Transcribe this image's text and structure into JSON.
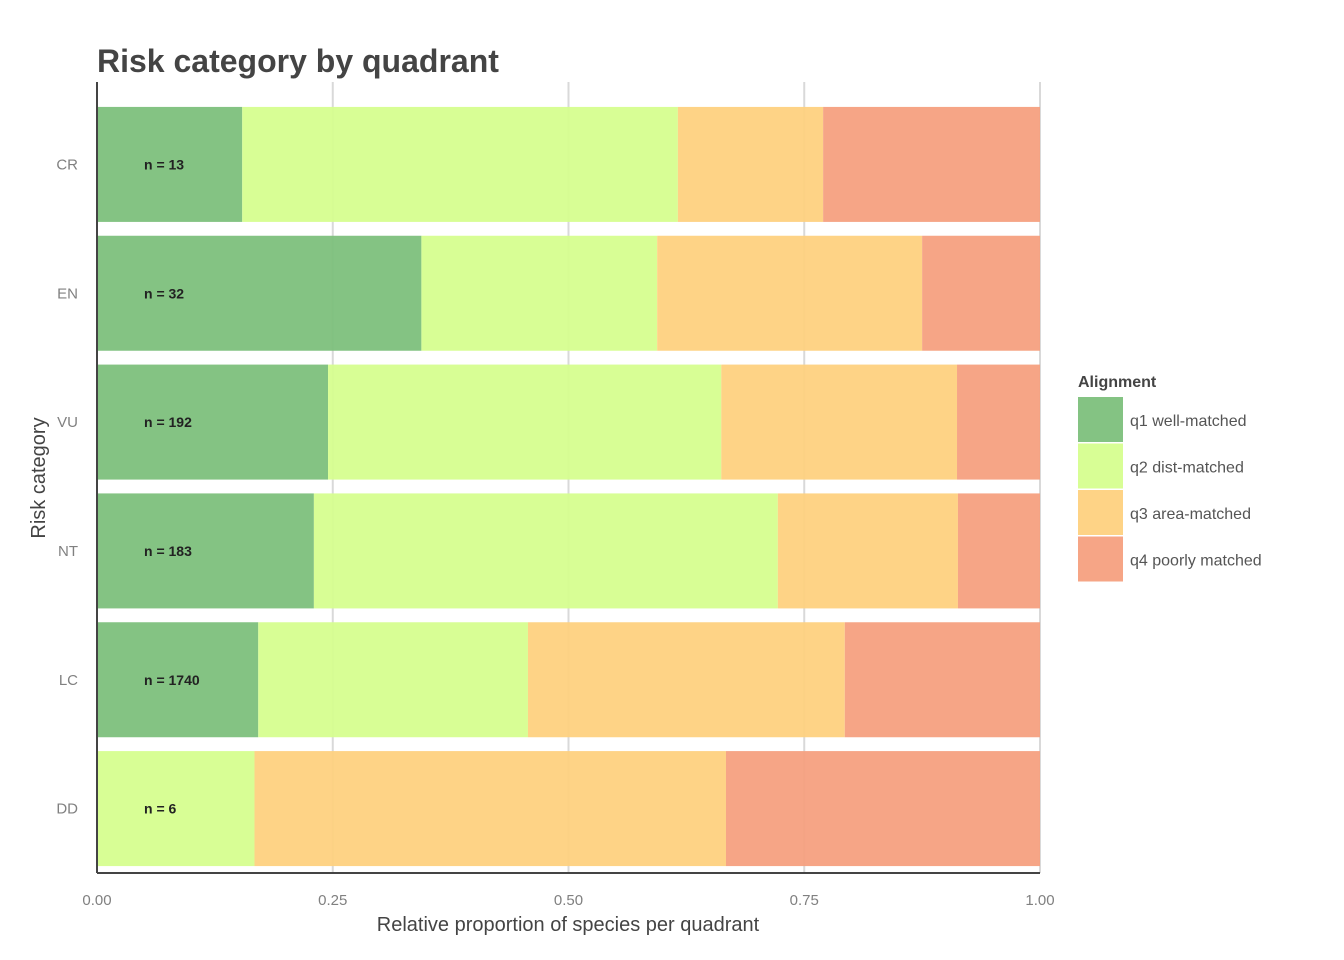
{
  "chart_data": {
    "type": "bar",
    "orientation": "horizontal",
    "stacked": true,
    "title": "Risk category by quadrant",
    "xlabel": "Relative proportion of species per quadrant",
    "ylabel": "Risk category",
    "xlim": [
      0,
      1
    ],
    "x_ticks": [
      "0.00",
      "0.25",
      "0.50",
      "0.75",
      "1.00"
    ],
    "x_tick_values": [
      0,
      0.25,
      0.5,
      0.75,
      1.0
    ],
    "grid": true,
    "legend_title": "Alignment",
    "legend_position": "right",
    "categories": [
      "CR",
      "EN",
      "VU",
      "NT",
      "LC",
      "DD"
    ],
    "n_labels": [
      "n = 13",
      "n = 32",
      "n = 192",
      "n = 183",
      "n = 1740",
      "n = 6"
    ],
    "series": [
      {
        "name": "q1 well-matched",
        "color": "#7dc07c",
        "values": [
          0.154,
          0.344,
          0.245,
          0.23,
          0.171,
          0.0
        ]
      },
      {
        "name": "q2 dist-matched",
        "color": "#d6fe8f",
        "values": [
          0.462,
          0.25,
          0.417,
          0.492,
          0.286,
          0.167
        ]
      },
      {
        "name": "q3 area-matched",
        "color": "#fed17f",
        "values": [
          0.154,
          0.281,
          0.25,
          0.191,
          0.336,
          0.5
        ]
      },
      {
        "name": "q4 poorly matched",
        "color": "#f5a07f",
        "values": [
          0.23,
          0.125,
          0.088,
          0.087,
          0.207,
          0.333
        ]
      }
    ]
  }
}
